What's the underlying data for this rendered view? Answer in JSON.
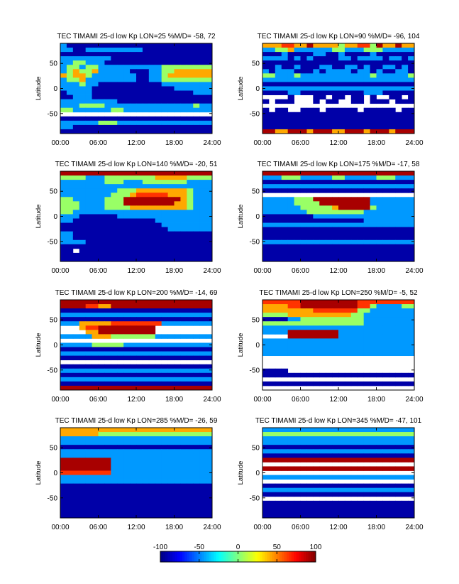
{
  "figure": {
    "colorbar": {
      "min": -100,
      "max": 100,
      "ticks": [
        -100,
        -50,
        0,
        50,
        100
      ],
      "colormap": "jet"
    }
  },
  "chart_data": [
    {
      "type": "heatmap",
      "title": "TEC TIMAMI 25-d low Kp LON=25 %M/D=  -58,  72",
      "ylabel": "Latitude",
      "xticks": [
        "00:00",
        "06:00",
        "12:00",
        "18:00",
        "24:00"
      ],
      "yticks": [
        50,
        0,
        -50
      ],
      "xlim": [
        0,
        24
      ],
      "ylim": [
        -90,
        90
      ],
      "rows": [
        "CBBBBBBBBBBBBBBBBBBBBBBB",
        "CCBBCCCCCCCCCBBBBBBBBBBB",
        "BBBBBBBBBBBBBBBBBBBBBBBB",
        "CCCCCCCCBBBBBBBBBBBBBBBB",
        "CCGGCCCBBBBBBBBBBBBBBBBB",
        "CGGCGGCCCCCCCCCCGGGGGGGG",
        "CGYGGYCCCCCBBBCCGGYYYYYY",
        "YGYYGCCCCCCCBBCCGYYYYYYY",
        "CGGYCCCCCCCCBBCCGGGGGGGG",
        "CCCGCCBBBBBBBBBBCCCCCCCC",
        "CCCCCBBBBBBBBBBBBBCCCCCC",
        "BCCCCBBBBBBBBBBBBBBBBCCC",
        "BBCCCBBBBBBBBBBBBBBBBBBB",
        "CCCCCCCCCBBBBBBBBBBBBBBB",
        "CCCGGGGCCCCCCCCCCCCCCGCC",
        "GGCCCCCCGGCCCCCCCCCCCCCC",
        "WWWWWWWWWWWWWWWWWWWWWWWW",
        "BBBBBBBBBBBBBBBBBBBBBBBB",
        "CCCCCCGGGCCCCCCCCCCCCCCC",
        "CCBBBBBBBBBBBBBBBBBBBBBB",
        "BBBBBBBBBBBBBBBBBBBBBBBB"
      ]
    },
    {
      "type": "heatmap",
      "title": "TEC TIMAMI 25-d low Kp LON=90 %M/D=  -96,  104",
      "ylabel": "Latitude",
      "xticks": [
        "00:00",
        "06:00",
        "12:00",
        "18:00",
        "24:00"
      ],
      "yticks": [
        50,
        0,
        -50
      ],
      "xlim": [
        0,
        24
      ],
      "ylim": [
        -90,
        90
      ],
      "rows": [
        "YYYOOYYRYYYYGYYOOGRYYRYY",
        "CCGGYCCCCCCGGCCCGGGCCCCC",
        "BBBCBBBBCCBBCBBBBCBBBBBB",
        "CCCCBCBCBBBBCCBCCCCBCCBC",
        "BBBBBBBBBBBBBBBBBBBBBBBB",
        "BBCBBCBBBCCBBCCBCBBCCBCB",
        "CBCCCBBBCBCCCCBCCBCBBCCB",
        "GGCCCGCCCCCCCCCCCGCCCCCG",
        "CCCCCCCCCCCCCCCCCCCCCCCC",
        "BBBBBBBBBBBBBBBBBBBBBBBB",
        "CCCCCCCCCCCCCCCCCCCCCCCC",
        "BBBBCCBBBBBBBBBBCCCBBBBB",
        "WWWWBWWWBBWBBWBBWBWWBBWB",
        "BWBBBWWWBWBBWWBBWBBBWBBB",
        "WWWWWWWWWWWWWWWWWWWWWWWW",
        "BWBBWWBBBWBBBBBWBBBBBWBB",
        "BBBBBBBBBBBBBBBBBBBBBBBB",
        "BBBBBBBBBBBBBBBBBBBBBBBB",
        "BBBBBBBBBBBBBBBBBBBBBBBB",
        "BBBBBBBBBBBBBBBBBBBBBBBB",
        "RRYYRRRYRRRYYRRRYRRRYRRR"
      ]
    },
    {
      "type": "heatmap",
      "title": "TEC TIMAMI 25-d low Kp LON=140 %M/D=  -20,  51",
      "ylabel": "Latitude",
      "xticks": [
        "00:00",
        "06:00",
        "12:00",
        "18:00",
        "24:00"
      ],
      "yticks": [
        50,
        0,
        -50
      ],
      "xlim": [
        0,
        24
      ],
      "ylim": [
        -90,
        90
      ],
      "rows": [
        "RRRRRRRRRRRRRRRRRRRRRRRR",
        "GGGGCCCGGGGGGGGYYYYYGGGG",
        "CCCCCCCGGGCCCGGGGGGGCCCC",
        "CCCCCCCCCCCCCCCCCCCCCCCC",
        "CCCCCCCCCGGGYYYYYYYYGCCC",
        "CCCCCCCCGGGYOOOOOYYYGCCC",
        "GGCCCCCGGGRRRRRRRRRYGCCC",
        "GGGCCCCGGGRRRRRRRRYYGCCC",
        "GGGCCCCGGGGYYYYYYYYYGCCC",
        "GGCCCCCCCCCCCCCCCCCCCCCC",
        "CCCBBBBBBCCCCCCCCCCCCCCC",
        "CCBBBBBBBBBBBBBCCCCCCCCC",
        "BBBBBBBBBBBBBBBBCCCCCCCC",
        "BBBBBBBBBBBBBBBBBCCCCCCC",
        "CCBBBBBBBBBBBBBBBBBBBBBB",
        "CCBBBBBBBBBBBBBBBBBBBBBB",
        "CCCCBBBBBBBBBBBBBBBBBBBB",
        "BBBBBBBBBBBBBBBBBBBBBBBB",
        "BBWBBBBBBBBBBBBBBBBBBBBB",
        "BBBBBBBBBBBBBBBBBBBBBBBB",
        "BBBBBBBBBBBBBBBBBBBBBBBB"
      ]
    },
    {
      "type": "heatmap",
      "title": "TEC TIMAMI 25-d low Kp LON=175 %M/D=  -17,  58",
      "ylabel": "Latitude",
      "xticks": [
        "00:00",
        "06:00",
        "12:00",
        "18:00",
        "24:00"
      ],
      "yticks": [
        50,
        0,
        -50
      ],
      "xlim": [
        0,
        24
      ],
      "ylim": [
        -90,
        90
      ],
      "rows": [
        "RRRRRRRRRRRRRRRRRRRRRRRR",
        "CCCGGGCCCCCGGCCCCCGGGCCC",
        "BBBBBBBBBBBBBBBBBBBBBBBB",
        "CCCCCCCCCCCCCCCCCCCCCCCC",
        "BBBBBBBBBBBBBBBBBBBBBBBB",
        "WWWWWWWWWWWWWWWWWWWWWWWW",
        "CCCCCGGGRRRRRRRRRCCCCCCC",
        "CCCCCGGGGRRRRRRRRCCCCCCC",
        "CCCCCCGGGGGYRRRRRGCCCCCC",
        "CCCCCCCGGGGGGGGGCCCCCCCC",
        "BBBBBBBBCCCCCCCCCCCCCCCC",
        "BBBBBBBBBBBBBBBBCCCCCCCC",
        "CCCCCCCCCCCCCCCCCCCCCCCC",
        "BBBBBBBBBBBBBBBBBBBBBBBB",
        "BBBBBBBBBBBBBBBBBBBBBBBB",
        "BBBBBBBBBBBBBBBBBBBBBBBB",
        "CCCCCCCCCCCCCCCCCCCCCCCC",
        "BBBBBBBBBBBBBBBBBBBBBBBB",
        "BBBBBBBBBBBBBBBBBBBBBBBB",
        "BBBBBBBBBBBBBBBBBBBBBBBB",
        "BBBBBBBBBBBBBBBBBBBBBBBB"
      ]
    },
    {
      "type": "heatmap",
      "title": "TEC TIMAMI 25-d low Kp LON=200 %M/D=  -14,  69",
      "ylabel": "Latitude",
      "xticks": [
        "00:00",
        "06:00",
        "12:00",
        "18:00",
        "24:00"
      ],
      "yticks": [
        50,
        0,
        -50
      ],
      "xlim": [
        0,
        24
      ],
      "ylim": [
        -90,
        90
      ],
      "rows": [
        "RRRRRRRRRRRRRRRRRRRRRRRR",
        "RRRROOYYRRRRRRRRRRRRRRRR",
        "BBBBBBBBBBBBBBBBBBBBBBBB",
        "CCCCCCCCCCCCCCCCCCCCCCCC",
        "BBBBBBBBBBBBBBBBBBBBBBBB",
        "CCCYYYYYOOOOOOOOCCCCCCCC",
        "WWWYOORRRRRRRRRWWWWWWWWW",
        "WWWWYYRRRRRRRRRWWWWWWWWW",
        "CCCCCYYYGGGGGGGCCCCCCCCC",
        "WWWWWWWWWWWWWWWWWWWWWWWW",
        "CCCCCGGGGGCCCCCCCCCCCCCC",
        "BBBBBBBBBBBBBBBBBBBBBBBB",
        "CCCCCCCCCCCCCCCCCCCCCCCC",
        "BBBBBBBBBBBBBBBBBBBBBBBB",
        "WWWWWWWWWWWWWWWWWWWWWWWW",
        "BBBBBBBBBBBBBBBBBBBBBBBB",
        "CCCCCCCCCCCCCCCCCCCCCCCC",
        "BBBBBBBBBBBBBBBBBBBBBBBB",
        "CCCCCCCCCCCCCCCCCCCCCCCC",
        "BBBBBBBBBBBBBBBBBBBBBBBB",
        "RRRRRRRRRRRRRRRRRRRRRRRR"
      ]
    },
    {
      "type": "heatmap",
      "title": "TEC TIMAMI 25-d low Kp LON=250 %M/D=  -5,  52",
      "ylabel": "Latitude",
      "xticks": [
        "00:00",
        "06:00",
        "12:00",
        "18:00",
        "24:00"
      ],
      "yticks": [
        50,
        0,
        -50
      ],
      "xlim": [
        0,
        24
      ],
      "ylim": [
        -90,
        90
      ],
      "rows": [
        "OOOOOORRRRRRRRROOOOOOOOO",
        "YYYYOORRRRRRRRROOGCCCCGG",
        "YYYYYYYYOOOOOOOGGCCCCCCC",
        "GGGGYYYYYYYYYYGGCCCCCCCC",
        "BBBBCCGGGGGGGGGGCCCCCCCC",
        "GGGGGGGGGGGGGGGGCCCCCCCC",
        "CCCCCCCCCCCCCCCCCCCCCCCC",
        "CCCCRRRRRRRRCCCCCCCCCCCC",
        "WWWWRRRRRRRRCCCCCCCCCCCC",
        "CCCCCCCCCCCCCCCCCCCCCCCC",
        "CCCCCCCCCCCCCCCCCCCCCCCC",
        "CCCCCCCCCCCCCCCCCCCCCCCC",
        "CCCCCCCCCCCCCCCCCCCCCCCC",
        "WWWWWWWWWWWWWWWWWWWWWWWW",
        "WWWWWWWWWWWWWWWWWWWWWWWW",
        "WWWWWWWWWWWWWWWWWWWWWWWW",
        "BBBBWWWWWWWWWWWWWWWWWWWW",
        "BBBBBBBBBBBBBBBBBBBBBBBB",
        "WWWWWWWWWWWWWWWWWWWWWWWW",
        "BBBBBBBBBBBBBBBBBBBBBBBB",
        "WWWWWWWWWWWWWWWWWWWWWWWW"
      ]
    },
    {
      "type": "heatmap",
      "title": "TEC TIMAMI 25-d low Kp LON=285 %M/D=  -26,  59",
      "ylabel": "Latitude",
      "xticks": [
        "00:00",
        "06:00",
        "12:00",
        "18:00",
        "24:00"
      ],
      "yticks": [
        50,
        0,
        -50
      ],
      "xlim": [
        0,
        24
      ],
      "ylim": [
        -90,
        90
      ],
      "rows": [
        "YYYYYYYYYYYYYYYYYYYYYYYY",
        "YYYYYYGGGGGGGGGGGGGGGGGG",
        "CCCCCCCCCCCCCCCCCCCCCCCC",
        "CCCCCCCCCCCCCCCCCCCCCCCC",
        "BBBBBBBBBBBBBBBBBBBBBBBB",
        "CCCCCCCCCCCCCCCCCCCCCCCC",
        "CCCCCCCCCCCCCCCCCCCCCCCC",
        "RRRRRRRRCCCCCCCCCCCCCCCC",
        "RRRRRRRRCCCCCCCCCCCCCCCC",
        "RRRRRRRRCCCCCCCCCCCCCCCC",
        "OOOOOOOOCCCCCCCCCCCCCCCC",
        "CCCCCCCCCCCCCCCCCCCCCCCC",
        "CCCCCCCCCCCCCCCCCCCCCCCC",
        "BBBBBBBBBBBBBBBBBBBBBBBB",
        "BBBBBBBBBBBBBBBBBBBBBBBB",
        "BBBBBBBBBBBBBBBBBBBBBBBB",
        "BBBBBBBBBBBBBBBBBBBBBBBB",
        "BBBBBBBBBBBBBBBBBBBBBBBB",
        "BBBBBBBBBBBBBBBBBBBBBBBB",
        "BBBBBBBBBBBBBBBBBBBBBBBB",
        "BBBBBBBBBBBBBBBBBBBBBBBB"
      ]
    },
    {
      "type": "heatmap",
      "title": "TEC TIMAMI 25-d low Kp LON=345 %M/D=  -47,  101",
      "ylabel": "Latitude",
      "xticks": [
        "00:00",
        "06:00",
        "12:00",
        "18:00",
        "24:00"
      ],
      "yticks": [
        50,
        0,
        -50
      ],
      "xlim": [
        0,
        24
      ],
      "ylim": [
        -90,
        90
      ],
      "rows": [
        "CCCCCCCCCCCCCCCCCCCCCCCC",
        "GGGGGGGGGGGGGGGGGGGGGGGG",
        "CCCCCCCCCCCCCCCCCCCCCCCC",
        "CCCCCCCCCCCCCCCCCCCCCCCC",
        "BBBBBBBBBBBBBBBBBBBBBBBB",
        "CCCCCCCCCCCCCCCCCCCCCCCC",
        "BBBBBBBBBBBBBBBBBBBBBBBB",
        "RRRRRRRRRRRRRRRRRRRRRRRR",
        "WWWWWWWWWWWWWWWWWWWWWWWW",
        "RRRRRRRRRRRRRRRRRRRRRRRR",
        "WWWWWWWWWWWWWWWWWWWWWWWW",
        "CCCCCCCCCCCCCCCCCCCCCCCC",
        "WWWWWWWWWWWWWWWWWWWWWWWW",
        "BBBBBBBBBBBBBBBBBBBBBBBB",
        "CCCCCCCCCCCCCCCCCCCCCCCC",
        "BBBBBBBBBBBBBBBBBBBBBBBB",
        "WWWWWWWWWWWWWWWWWWWWWWWW",
        "BBBBBBBBBBBBBBBBBBBBBBBB",
        "BBBBBBBBBBBBBBBBBBBBBBBB",
        "BBBBBBBBBBBBBBBBBBBBBBBB",
        "BBBBBBBBBBBBBBBBBBBBBBBB"
      ]
    }
  ]
}
